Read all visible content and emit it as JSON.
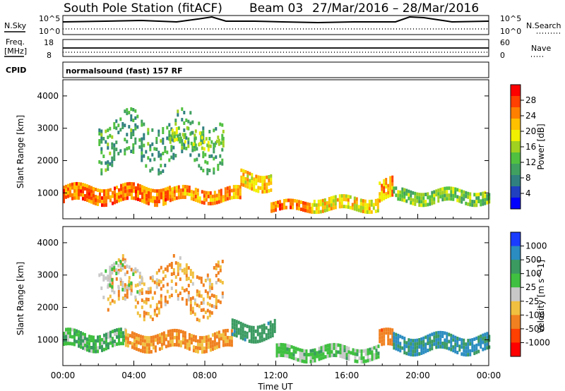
{
  "header": {
    "station": "South Pole Station (fitACF)",
    "beam": "Beam 03",
    "date_range": "27/Mar/2016 – 28/Mar/2016"
  },
  "top_panels": {
    "nsky_label": "N.Sky",
    "nsearch_label": "N.Search",
    "freq_label_1": "Freq.",
    "freq_label_2": "[MHz]",
    "nave_label": "Nave",
    "cpid_label": "CPID",
    "nsky_ticks": [
      "10^5",
      "10^0"
    ],
    "nsearch_ticks": [
      "10^5",
      "10^0"
    ],
    "freq_ticks": [
      "18",
      "8"
    ],
    "nave_ticks": [
      "60",
      "0"
    ],
    "cpid_text": "normalsound (fast) 157 RF"
  },
  "chart_data": [
    {
      "type": "heatmap",
      "name": "power",
      "ylabel": "Slant Range [km]",
      "y_ticks": [
        "4000",
        "3000",
        "2000",
        "1000"
      ],
      "ylim": [
        200,
        4500
      ],
      "colorbar": {
        "label": "Power [dB]",
        "ticks": [
          "28",
          "24",
          "20",
          "16",
          "12",
          "8",
          "4"
        ],
        "colors": [
          "#ff0000",
          "#ff4000",
          "#ff8000",
          "#ffc000",
          "#f0f000",
          "#a0d020",
          "#50c040",
          "#40a060",
          "#308080",
          "#2040c0",
          "#0000ff"
        ]
      },
      "x_hours": [
        0,
        24
      ],
      "range_km": [
        200,
        4500
      ],
      "bands": [
        {
          "t0": 0.0,
          "t1": 6.0,
          "r_center": 1000,
          "width": 450,
          "value": 26
        },
        {
          "t0": 6.0,
          "t1": 10.0,
          "r_center": 950,
          "width": 400,
          "value": 24
        },
        {
          "t0": 10.0,
          "t1": 11.7,
          "r_center": 1400,
          "width": 500,
          "value": 22
        },
        {
          "t0": 11.7,
          "t1": 14.0,
          "r_center": 600,
          "width": 300,
          "value": 26
        },
        {
          "t0": 14.0,
          "t1": 17.8,
          "r_center": 700,
          "width": 350,
          "value": 20
        },
        {
          "t0": 17.8,
          "t1": 18.6,
          "r_center": 1100,
          "width": 600,
          "value": 24
        },
        {
          "t0": 18.6,
          "t1": 24.0,
          "r_center": 900,
          "width": 400,
          "value": 14
        },
        {
          "t0": 2.0,
          "t1": 9.0,
          "r_center": 2600,
          "width": 1400,
          "value": 10
        },
        {
          "t0": 6.0,
          "t1": 9.0,
          "r_center": 2700,
          "width": 500,
          "value": 16
        }
      ]
    },
    {
      "type": "heatmap",
      "name": "velocity",
      "ylabel": "Slant Range [km]",
      "y_ticks": [
        "4000",
        "3000",
        "2000",
        "1000"
      ],
      "ylim": [
        200,
        4500
      ],
      "colorbar": {
        "label": "Velocity [m s^-1]",
        "ticks": [
          "1000",
          "500",
          "100",
          "25",
          "-25",
          "-100",
          "-500",
          "-1000"
        ],
        "colors": [
          "#1a3cff",
          "#2a8cc0",
          "#3a9a60",
          "#40c040",
          "#c8c8c8",
          "#f0c040",
          "#f08020",
          "#ff4000",
          "#ff0000"
        ]
      },
      "xlabel": "Time UT",
      "x_ticks": [
        "00:00",
        "04:00",
        "08:00",
        "12:00",
        "16:00",
        "20:00",
        "00:00"
      ],
      "x_hours": [
        0,
        24
      ],
      "range_km": [
        200,
        4500
      ],
      "bands": [
        {
          "t0": 0.0,
          "t1": 3.5,
          "r_center": 1000,
          "width": 500,
          "value": 80
        },
        {
          "t0": 3.5,
          "t1": 9.5,
          "r_center": 1000,
          "width": 450,
          "value": -150
        },
        {
          "t0": 9.5,
          "t1": 12.0,
          "r_center": 1300,
          "width": 500,
          "value": 300
        },
        {
          "t0": 12.0,
          "t1": 17.8,
          "r_center": 600,
          "width": 400,
          "value": 50
        },
        {
          "t0": 17.8,
          "t1": 18.6,
          "r_center": 1000,
          "width": 500,
          "value": -300
        },
        {
          "t0": 18.6,
          "t1": 24.0,
          "r_center": 900,
          "width": 500,
          "value": 600
        },
        {
          "t0": 2.5,
          "t1": 9.0,
          "r_center": 2600,
          "width": 1400,
          "value": -100
        },
        {
          "t0": 2.0,
          "t1": 4.5,
          "r_center": 2800,
          "width": 900,
          "value": 10
        }
      ]
    }
  ]
}
